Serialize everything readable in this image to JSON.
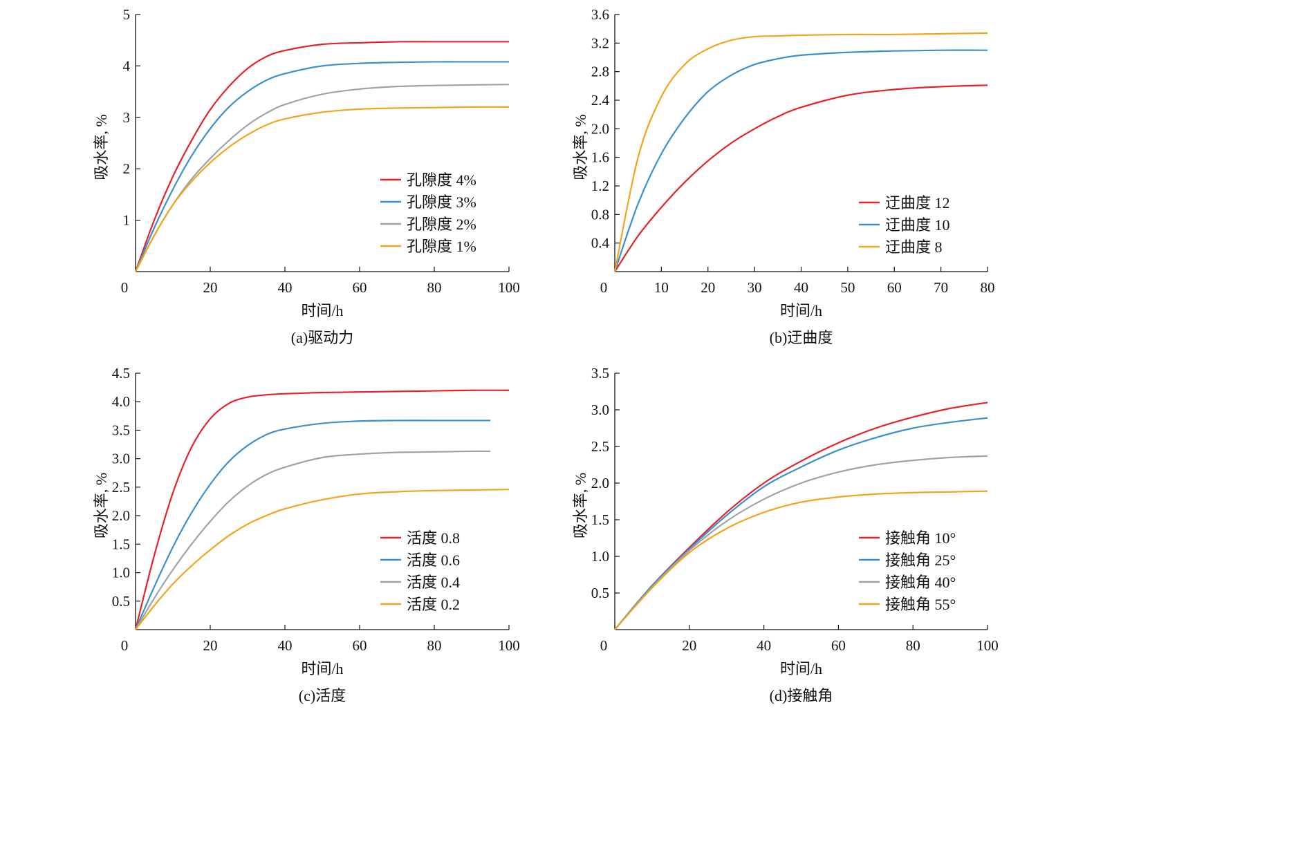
{
  "chart_data": [
    {
      "panel_label": "(a)驱动力",
      "type": "line",
      "xlabel": "时间/h",
      "ylabel": "吸水率, %",
      "xlim": [
        0,
        100
      ],
      "ylim": [
        0,
        5
      ],
      "xticks": [
        "0",
        "20",
        "40",
        "60",
        "80",
        "100"
      ],
      "yticks": [
        "1",
        "2",
        "3",
        "4",
        "5"
      ],
      "grid": false,
      "legend_placement": "center-right",
      "series": [
        {
          "name": "孔隙度 4%",
          "color": "#e8202a",
          "x": [
            0,
            5,
            10,
            15,
            20,
            25,
            30,
            35,
            40,
            50,
            60,
            70,
            80,
            90,
            100
          ],
          "y": [
            0,
            1.0,
            1.85,
            2.55,
            3.15,
            3.6,
            3.95,
            4.18,
            4.3,
            4.42,
            4.45,
            4.47,
            4.47,
            4.47,
            4.47
          ]
        },
        {
          "name": "孔隙度 3%",
          "color": "#3a8fcf",
          "x": [
            0,
            5,
            10,
            15,
            20,
            25,
            30,
            35,
            40,
            50,
            60,
            70,
            80,
            90,
            100
          ],
          "y": [
            0,
            0.85,
            1.6,
            2.25,
            2.78,
            3.2,
            3.5,
            3.72,
            3.85,
            4.0,
            4.05,
            4.07,
            4.08,
            4.08,
            4.08
          ]
        },
        {
          "name": "孔隙度 2%",
          "color": "#9ea3a6",
          "x": [
            0,
            5,
            10,
            15,
            20,
            25,
            30,
            35,
            40,
            50,
            60,
            70,
            80,
            90,
            100
          ],
          "y": [
            0,
            0.7,
            1.3,
            1.8,
            2.2,
            2.55,
            2.85,
            3.08,
            3.25,
            3.45,
            3.55,
            3.6,
            3.62,
            3.63,
            3.64
          ]
        },
        {
          "name": "孔隙度 1%",
          "color": "#f0a51b",
          "x": [
            0,
            5,
            10,
            15,
            20,
            25,
            30,
            35,
            40,
            50,
            60,
            70,
            80,
            90,
            100
          ],
          "y": [
            0,
            0.7,
            1.3,
            1.75,
            2.12,
            2.42,
            2.66,
            2.85,
            2.97,
            3.1,
            3.16,
            3.18,
            3.19,
            3.2,
            3.2
          ]
        }
      ]
    },
    {
      "panel_label": "(b)迂曲度",
      "type": "line",
      "xlabel": "时间/h",
      "ylabel": "吸水率, %",
      "xlim": [
        0,
        80
      ],
      "ylim": [
        0,
        3.6
      ],
      "xticks": [
        "0",
        "10",
        "20",
        "30",
        "40",
        "50",
        "60",
        "70",
        "80"
      ],
      "yticks": [
        "0.4",
        "0.8",
        "1.2",
        "1.6",
        "2.0",
        "2.4",
        "2.8",
        "3.2",
        "3.6"
      ],
      "grid": false,
      "legend_placement": "lower-right",
      "series": [
        {
          "name": "迂曲度 12",
          "color": "#e8202a",
          "x": [
            0,
            5,
            10,
            15,
            20,
            25,
            30,
            35,
            40,
            50,
            60,
            70,
            80
          ],
          "y": [
            0,
            0.5,
            0.9,
            1.25,
            1.55,
            1.8,
            2.0,
            2.17,
            2.3,
            2.47,
            2.55,
            2.59,
            2.61
          ]
        },
        {
          "name": "迂曲度 10",
          "color": "#3a8fcf",
          "x": [
            0,
            5,
            10,
            15,
            20,
            25,
            30,
            35,
            40,
            50,
            60,
            70,
            80
          ],
          "y": [
            0,
            0.95,
            1.65,
            2.15,
            2.52,
            2.75,
            2.9,
            2.98,
            3.03,
            3.07,
            3.09,
            3.1,
            3.1
          ]
        },
        {
          "name": "迂曲度 8",
          "color": "#f0a51b",
          "x": [
            0,
            5,
            10,
            15,
            20,
            25,
            30,
            35,
            40,
            50,
            60,
            70,
            80
          ],
          "y": [
            0,
            1.6,
            2.45,
            2.9,
            3.12,
            3.24,
            3.29,
            3.3,
            3.31,
            3.32,
            3.32,
            3.33,
            3.34
          ]
        }
      ]
    },
    {
      "panel_label": "(c)活度",
      "type": "line",
      "xlabel": "时间/h",
      "ylabel": "吸水率, %",
      "xlim": [
        0,
        100
      ],
      "ylim": [
        0,
        4.5
      ],
      "xticks": [
        "0",
        "20",
        "40",
        "60",
        "80",
        "100"
      ],
      "yticks": [
        "0.5",
        "1.0",
        "1.5",
        "2.0",
        "2.5",
        "3.0",
        "3.5",
        "4.0",
        "4.5"
      ],
      "grid": false,
      "legend_placement": "lower-right",
      "series": [
        {
          "name": "活度 0.8",
          "color": "#e8202a",
          "x": [
            0,
            5,
            10,
            15,
            20,
            25,
            30,
            35,
            40,
            50,
            60,
            70,
            80,
            90,
            100
          ],
          "y": [
            0,
            1.3,
            2.4,
            3.2,
            3.7,
            3.97,
            4.08,
            4.12,
            4.14,
            4.16,
            4.17,
            4.18,
            4.19,
            4.2,
            4.2
          ]
        },
        {
          "name": "活度 0.6",
          "color": "#3a8fcf",
          "x": [
            0,
            5,
            10,
            15,
            20,
            25,
            30,
            35,
            40,
            50,
            60,
            70,
            80,
            90,
            95
          ],
          "y": [
            0,
            0.75,
            1.45,
            2.05,
            2.55,
            2.95,
            3.23,
            3.42,
            3.52,
            3.62,
            3.66,
            3.67,
            3.67,
            3.67,
            3.67
          ]
        },
        {
          "name": "活度 0.4",
          "color": "#9ea3a6",
          "x": [
            0,
            5,
            10,
            15,
            20,
            25,
            30,
            35,
            40,
            50,
            60,
            70,
            80,
            90,
            95
          ],
          "y": [
            0,
            0.55,
            1.05,
            1.5,
            1.9,
            2.25,
            2.52,
            2.72,
            2.85,
            3.02,
            3.08,
            3.11,
            3.12,
            3.13,
            3.13
          ]
        },
        {
          "name": "活度 0.2",
          "color": "#f0a51b",
          "x": [
            0,
            5,
            10,
            15,
            20,
            25,
            30,
            35,
            40,
            50,
            60,
            70,
            80,
            90,
            100
          ],
          "y": [
            0,
            0.42,
            0.8,
            1.12,
            1.4,
            1.65,
            1.85,
            2.0,
            2.12,
            2.28,
            2.38,
            2.42,
            2.44,
            2.45,
            2.46
          ]
        }
      ]
    },
    {
      "panel_label": "(d)接触角",
      "type": "line",
      "xlabel": "时间/h",
      "ylabel": "吸水率, %",
      "xlim": [
        0,
        100
      ],
      "ylim": [
        0,
        3.5
      ],
      "xticks": [
        "0",
        "20",
        "40",
        "60",
        "80",
        "100"
      ],
      "yticks": [
        "0.5",
        "1.0",
        "1.5",
        "2.0",
        "2.5",
        "3.0",
        "3.5"
      ],
      "grid": false,
      "legend_placement": "lower-right",
      "series": [
        {
          "name": "接触角 10°",
          "color": "#e8202a",
          "x": [
            0,
            10,
            20,
            30,
            40,
            50,
            60,
            70,
            80,
            90,
            100
          ],
          "y": [
            0,
            0.6,
            1.12,
            1.6,
            2.0,
            2.3,
            2.55,
            2.75,
            2.9,
            3.02,
            3.1
          ]
        },
        {
          "name": "接触角 25°",
          "color": "#3a8fcf",
          "x": [
            0,
            10,
            20,
            30,
            40,
            50,
            60,
            70,
            80,
            90,
            100
          ],
          "y": [
            0,
            0.6,
            1.1,
            1.56,
            1.95,
            2.22,
            2.45,
            2.62,
            2.75,
            2.83,
            2.89
          ]
        },
        {
          "name": "接触角 40°",
          "color": "#9ea3a6",
          "x": [
            0,
            10,
            20,
            30,
            40,
            50,
            60,
            70,
            80,
            90,
            100
          ],
          "y": [
            0,
            0.58,
            1.08,
            1.48,
            1.78,
            2.0,
            2.15,
            2.25,
            2.31,
            2.35,
            2.37
          ]
        },
        {
          "name": "接触角 55°",
          "color": "#f0a51b",
          "x": [
            0,
            10,
            20,
            30,
            40,
            50,
            60,
            70,
            80,
            90,
            100
          ],
          "y": [
            0,
            0.57,
            1.05,
            1.38,
            1.6,
            1.74,
            1.81,
            1.85,
            1.87,
            1.88,
            1.89
          ]
        }
      ]
    }
  ]
}
